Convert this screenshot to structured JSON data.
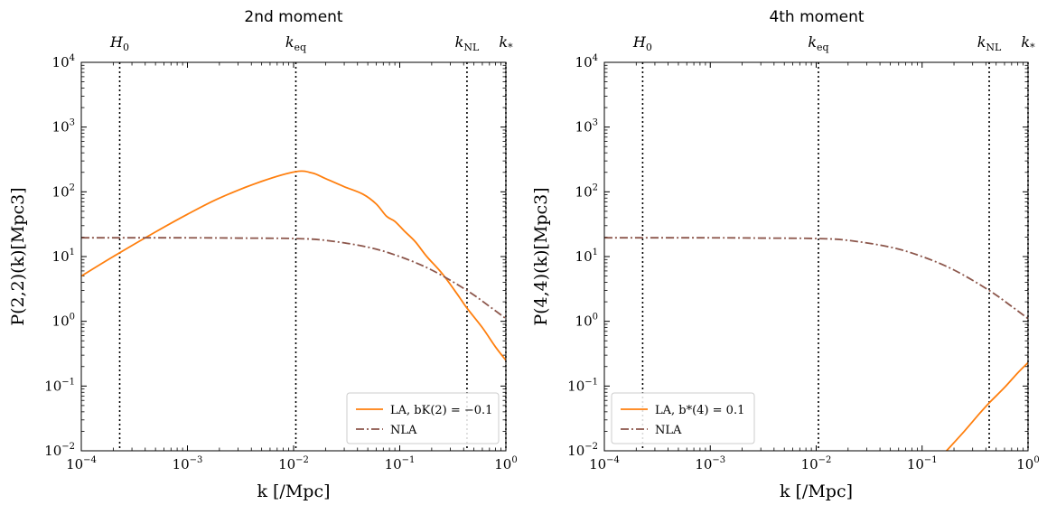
{
  "chart_data": [
    {
      "type": "line",
      "title": "2nd moment",
      "xlabel": "k [/Mpc]",
      "ylabel": "P(2,2)(k)[Mpc3]",
      "xscale": "log",
      "yscale": "log",
      "xlim": [
        0.0001,
        1
      ],
      "ylim": [
        0.01,
        10000
      ],
      "x_ticks": [
        {
          "base": "10",
          "exp": "−4",
          "value": 0.0001
        },
        {
          "base": "10",
          "exp": "−3",
          "value": 0.001
        },
        {
          "base": "10",
          "exp": "−2",
          "value": 0.01
        },
        {
          "base": "10",
          "exp": "−1",
          "value": 0.1
        },
        {
          "base": "10",
          "exp": "0",
          "value": 1
        }
      ],
      "y_ticks": [
        {
          "base": "10",
          "exp": "−2",
          "value": 0.01
        },
        {
          "base": "10",
          "exp": "−1",
          "value": 0.1
        },
        {
          "base": "10",
          "exp": "0",
          "value": 1
        },
        {
          "base": "10",
          "exp": "1",
          "value": 10
        },
        {
          "base": "10",
          "exp": "2",
          "value": 100
        },
        {
          "base": "10",
          "exp": "3",
          "value": 1000
        },
        {
          "base": "10",
          "exp": "4",
          "value": 10000
        }
      ],
      "vlines": [
        {
          "label": "H0",
          "x": 0.00023
        },
        {
          "label": "keq",
          "x": 0.0105
        },
        {
          "label": "kNL",
          "x": 0.43
        },
        {
          "label": "k*",
          "x": 1.0
        }
      ],
      "legend_position": "lower-right",
      "series": [
        {
          "name": "LA, bK(2) = −0.1",
          "color": "#ff7f0e",
          "style": "solid",
          "x": [
            0.0001,
            0.0002,
            0.0005,
            0.001,
            0.002,
            0.005,
            0.0105,
            0.015,
            0.02,
            0.03,
            0.045,
            0.06,
            0.075,
            0.09,
            0.11,
            0.14,
            0.18,
            0.25,
            0.35,
            0.43,
            0.6,
            0.8,
            1.0
          ],
          "y": [
            5.0,
            10.0,
            24.0,
            45.0,
            80.0,
            145.0,
            205.0,
            195.0,
            160.0,
            120.0,
            92.0,
            65.0,
            42.0,
            35.0,
            25.0,
            17.0,
            10.0,
            5.5,
            2.6,
            1.6,
            0.8,
            0.4,
            0.25
          ]
        },
        {
          "name": "NLA",
          "color": "#8c564b",
          "style": "dashdot",
          "x": [
            0.0001,
            0.001,
            0.003,
            0.01,
            0.02,
            0.05,
            0.1,
            0.2,
            0.43,
            0.7,
            1.0
          ],
          "y": [
            19.5,
            19.5,
            19.3,
            19.0,
            17.8,
            14.0,
            10.0,
            6.2,
            3.0,
            1.7,
            1.1
          ]
        }
      ]
    },
    {
      "type": "line",
      "title": "4th moment",
      "xlabel": "k [/Mpc]",
      "ylabel": "P(4,4)(k)[Mpc3]",
      "xscale": "log",
      "yscale": "log",
      "xlim": [
        0.0001,
        1
      ],
      "ylim": [
        0.01,
        10000
      ],
      "x_ticks": [
        {
          "base": "10",
          "exp": "−4",
          "value": 0.0001
        },
        {
          "base": "10",
          "exp": "−3",
          "value": 0.001
        },
        {
          "base": "10",
          "exp": "−2",
          "value": 0.01
        },
        {
          "base": "10",
          "exp": "−1",
          "value": 0.1
        },
        {
          "base": "10",
          "exp": "0",
          "value": 1
        }
      ],
      "y_ticks": [
        {
          "base": "10",
          "exp": "−2",
          "value": 0.01
        },
        {
          "base": "10",
          "exp": "−1",
          "value": 0.1
        },
        {
          "base": "10",
          "exp": "0",
          "value": 1
        },
        {
          "base": "10",
          "exp": "1",
          "value": 10
        },
        {
          "base": "10",
          "exp": "2",
          "value": 100
        },
        {
          "base": "10",
          "exp": "3",
          "value": 1000
        },
        {
          "base": "10",
          "exp": "4",
          "value": 10000
        }
      ],
      "vlines": [
        {
          "label": "H0",
          "x": 0.00023
        },
        {
          "label": "keq",
          "x": 0.0105
        },
        {
          "label": "kNL",
          "x": 0.43
        },
        {
          "label": "k*",
          "x": 1.0
        }
      ],
      "legend_position": "lower-left",
      "series": [
        {
          "name": "LA, b*(4) = 0.1",
          "color": "#ff7f0e",
          "style": "solid",
          "x": [
            0.17,
            0.25,
            0.35,
            0.43,
            0.6,
            0.8,
            1.0
          ],
          "y": [
            0.01,
            0.02,
            0.038,
            0.055,
            0.095,
            0.16,
            0.23
          ]
        },
        {
          "name": "NLA",
          "color": "#8c564b",
          "style": "dashdot",
          "x": [
            0.0001,
            0.001,
            0.003,
            0.01,
            0.02,
            0.05,
            0.1,
            0.2,
            0.43,
            0.7,
            1.0
          ],
          "y": [
            19.5,
            19.5,
            19.3,
            19.0,
            17.8,
            14.0,
            10.0,
            6.2,
            3.0,
            1.7,
            1.1
          ]
        }
      ]
    }
  ]
}
